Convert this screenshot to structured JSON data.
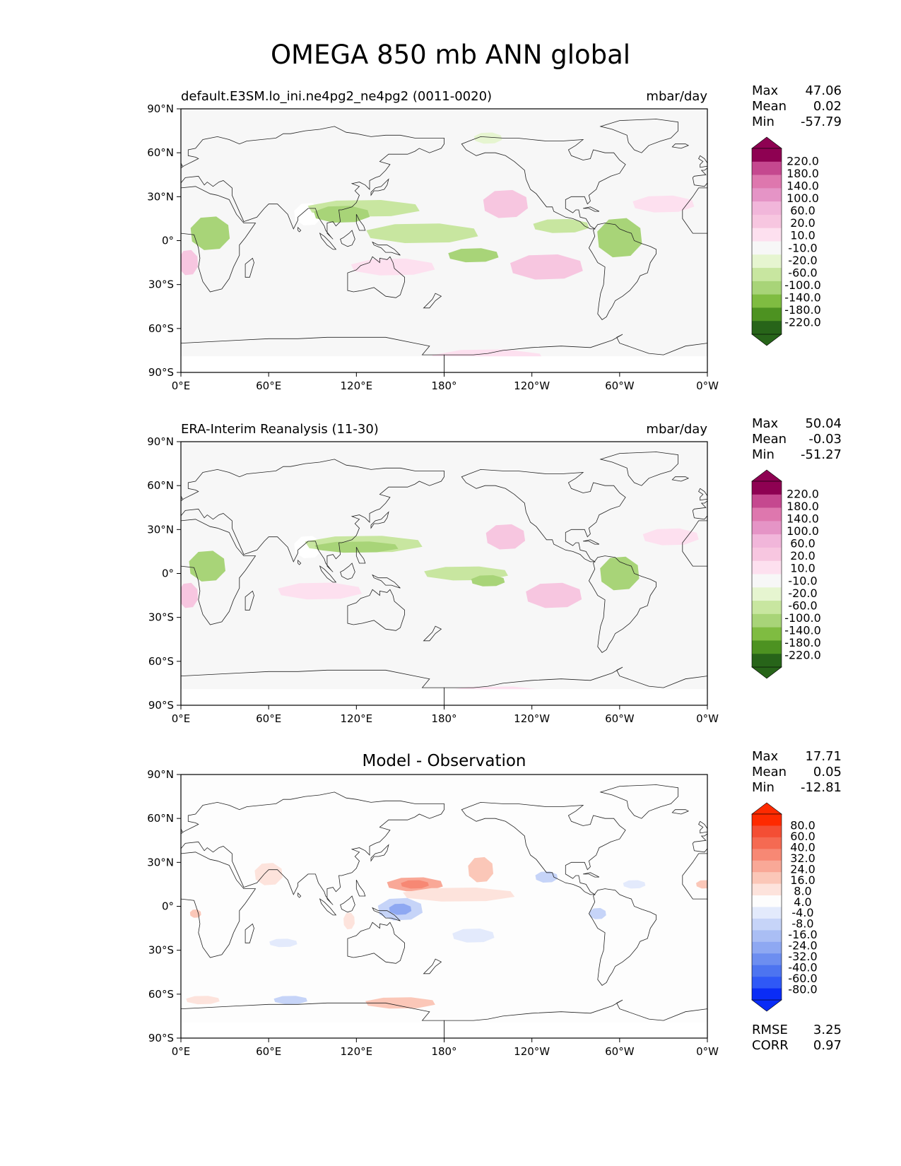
{
  "title": "OMEGA 850 mb ANN global",
  "colors": {
    "ocean": "#f7f7f7",
    "land_fill": "#ffffff",
    "coast": "#222222",
    "main_cmap": [
      "#276419",
      "#4d9221",
      "#7fbc41",
      "#a8d478",
      "#c8e6a0",
      "#e6f5d0",
      "#f7f7f7",
      "#fde0ef",
      "#f7c6e0",
      "#f1b6da",
      "#e594c6",
      "#de77ae",
      "#c5488f",
      "#8e0152"
    ],
    "diff_cmap": [
      "#0a2cf6",
      "#2f58f6",
      "#4d74f0",
      "#6d8ef0",
      "#8ea8f2",
      "#aabef4",
      "#c6d4f8",
      "#e3eafc",
      "#fdfdfd",
      "#fde3dc",
      "#fbc7b8",
      "#f9a897",
      "#f78874",
      "#f56a52",
      "#f44e34",
      "#fe2a00"
    ]
  },
  "panels": [
    {
      "id": "model",
      "left_title": "default.E3SM.lo_ini.ne4pg2_ne4pg2 (0011-0020)",
      "center_title": "",
      "right_title": "mbar/day",
      "stats": [
        {
          "label": "Max",
          "value": "47.06"
        },
        {
          "label": "Mean",
          "value": "0.02"
        },
        {
          "label": "Min",
          "value": "-57.79"
        }
      ],
      "colorbar": "main",
      "footer_stats": []
    },
    {
      "id": "obs",
      "left_title": "ERA-Interim Reanalysis (11-30)",
      "center_title": "",
      "right_title": "mbar/day",
      "stats": [
        {
          "label": "Max",
          "value": "50.04"
        },
        {
          "label": "Mean",
          "value": "-0.03"
        },
        {
          "label": "Min",
          "value": "-51.27"
        }
      ],
      "colorbar": "main",
      "footer_stats": []
    },
    {
      "id": "diff",
      "left_title": "",
      "center_title": "Model - Observation",
      "right_title": "",
      "stats": [
        {
          "label": "Max",
          "value": "17.71"
        },
        {
          "label": "Mean",
          "value": "0.05"
        },
        {
          "label": "Min",
          "value": "-12.81"
        }
      ],
      "colorbar": "diff",
      "footer_stats": [
        {
          "label": "RMSE",
          "value": "3.25"
        },
        {
          "label": "CORR",
          "value": "0.97"
        }
      ]
    }
  ],
  "axes": {
    "x_ticks": [
      "0°E",
      "60°E",
      "120°E",
      "180°",
      "120°W",
      "60°W",
      "0°W"
    ],
    "x_values": [
      0,
      60,
      120,
      180,
      240,
      300,
      360
    ],
    "y_ticks": [
      "90°N",
      "60°N",
      "30°N",
      "0°",
      "30°S",
      "60°S",
      "90°S"
    ],
    "y_values": [
      90,
      60,
      30,
      0,
      -30,
      -60,
      -90
    ]
  },
  "colorbars": {
    "main": {
      "labels": [
        "220.0",
        "180.0",
        "140.0",
        "100.0",
        "60.0",
        "20.0",
        "10.0",
        "-10.0",
        "-20.0",
        "-60.0",
        "-100.0",
        "-140.0",
        "-180.0",
        "-220.0"
      ]
    },
    "diff": {
      "labels": [
        "80.0",
        "60.0",
        "40.0",
        "32.0",
        "24.0",
        "16.0",
        "8.0",
        "4.0",
        "-4.0",
        "-8.0",
        "-16.0",
        "-24.0",
        "-32.0",
        "-40.0",
        "-60.0",
        "-80.0"
      ]
    }
  },
  "regions": {
    "model": [
      {
        "lat": 18,
        "lon": 87,
        "rlat": 8,
        "rlon": 10,
        "level": "blank"
      },
      {
        "lat": 22,
        "lon": 125,
        "rlat": 6,
        "rlon": 40,
        "level": -2
      },
      {
        "lat": 18,
        "lon": 110,
        "rlat": 6,
        "rlon": 20,
        "level": -3
      },
      {
        "lat": 5,
        "lon": 165,
        "rlat": 7,
        "rlon": 40,
        "level": -2
      },
      {
        "lat": -10,
        "lon": 200,
        "rlat": 5,
        "rlon": 18,
        "level": -3
      },
      {
        "lat": 5,
        "lon": 20,
        "rlat": 12,
        "rlon": 14,
        "level": -3
      },
      {
        "lat": 2,
        "lon": 300,
        "rlat": 14,
        "rlon": 16,
        "level": -3
      },
      {
        "lat": 10,
        "lon": 260,
        "rlat": 5,
        "rlon": 20,
        "level": -2
      },
      {
        "lat": 25,
        "lon": 222,
        "rlat": 10,
        "rlon": 16,
        "level": 2
      },
      {
        "lat": -18,
        "lon": 250,
        "rlat": 9,
        "rlon": 26,
        "level": 2
      },
      {
        "lat": -18,
        "lon": 145,
        "rlat": 6,
        "rlon": 30,
        "level": 1
      },
      {
        "lat": -15,
        "lon": 5,
        "rlat": 9,
        "rlon": 7,
        "level": 2
      },
      {
        "lat": 25,
        "lon": 330,
        "rlat": 6,
        "rlon": 22,
        "level": 1
      },
      {
        "lat": -80,
        "lon": 210,
        "rlat": 6,
        "rlon": 40,
        "level": 1
      },
      {
        "lat": 70,
        "lon": 210,
        "rlat": 4,
        "rlon": 10,
        "level": -1
      }
    ],
    "obs": [
      {
        "lat": 18,
        "lon": 87,
        "rlat": 8,
        "rlon": 10,
        "level": "blank"
      },
      {
        "lat": 20,
        "lon": 125,
        "rlat": 6,
        "rlon": 42,
        "level": -2
      },
      {
        "lat": 18,
        "lon": 120,
        "rlat": 4,
        "rlon": 30,
        "level": -3
      },
      {
        "lat": 0,
        "lon": 195,
        "rlat": 5,
        "rlon": 30,
        "level": -2
      },
      {
        "lat": -5,
        "lon": 210,
        "rlat": 4,
        "rlon": 12,
        "level": -3
      },
      {
        "lat": 5,
        "lon": 18,
        "rlat": 11,
        "rlon": 13,
        "level": -3
      },
      {
        "lat": 0,
        "lon": 300,
        "rlat": 12,
        "rlon": 14,
        "level": -3
      },
      {
        "lat": 25,
        "lon": 222,
        "rlat": 9,
        "rlon": 14,
        "level": 2
      },
      {
        "lat": -15,
        "lon": 255,
        "rlat": 9,
        "rlon": 20,
        "level": 2
      },
      {
        "lat": -12,
        "lon": 95,
        "rlat": 6,
        "rlon": 30,
        "level": 1
      },
      {
        "lat": -15,
        "lon": 5,
        "rlat": 9,
        "rlon": 7,
        "level": 2
      },
      {
        "lat": 25,
        "lon": 335,
        "rlat": 6,
        "rlon": 20,
        "level": 1
      },
      {
        "lat": -82,
        "lon": 215,
        "rlat": 5,
        "rlon": 40,
        "level": 1
      }
    ],
    "diff": [
      {
        "lat": 15,
        "lon": 160,
        "rlat": 5,
        "rlon": 20,
        "level": 3
      },
      {
        "lat": 15,
        "lon": 160,
        "rlat": 3,
        "rlon": 10,
        "level": 4
      },
      {
        "lat": 8,
        "lon": 190,
        "rlat": 5,
        "rlon": 40,
        "level": 1
      },
      {
        "lat": 25,
        "lon": 205,
        "rlat": 9,
        "rlon": 9,
        "level": 2
      },
      {
        "lat": 22,
        "lon": 60,
        "rlat": 8,
        "rlon": 10,
        "level": 1
      },
      {
        "lat": -2,
        "lon": 150,
        "rlat": 8,
        "rlon": 16,
        "level": -2
      },
      {
        "lat": -2,
        "lon": 150,
        "rlat": 4,
        "rlon": 8,
        "level": -4
      },
      {
        "lat": -20,
        "lon": 200,
        "rlat": 5,
        "rlon": 15,
        "level": -1
      },
      {
        "lat": -25,
        "lon": 70,
        "rlat": 3,
        "rlon": 10,
        "level": -1
      },
      {
        "lat": -64,
        "lon": 75,
        "rlat": 3,
        "rlon": 12,
        "level": -2
      },
      {
        "lat": -64,
        "lon": 15,
        "rlat": 3,
        "rlon": 12,
        "level": 1
      },
      {
        "lat": -66,
        "lon": 150,
        "rlat": 4,
        "rlon": 25,
        "level": 2
      },
      {
        "lat": 20,
        "lon": 250,
        "rlat": 4,
        "rlon": 8,
        "level": -2
      },
      {
        "lat": 15,
        "lon": 310,
        "rlat": 3,
        "rlon": 8,
        "level": -1
      },
      {
        "lat": -5,
        "lon": 285,
        "rlat": 4,
        "rlon": 6,
        "level": -2
      },
      {
        "lat": -10,
        "lon": 115,
        "rlat": 6,
        "rlon": 4,
        "level": 1
      },
      {
        "lat": -5,
        "lon": 10,
        "rlat": 3,
        "rlon": 4,
        "level": 2
      },
      {
        "lat": 15,
        "lon": 358,
        "rlat": 3,
        "rlon": 6,
        "level": 2
      }
    ]
  }
}
